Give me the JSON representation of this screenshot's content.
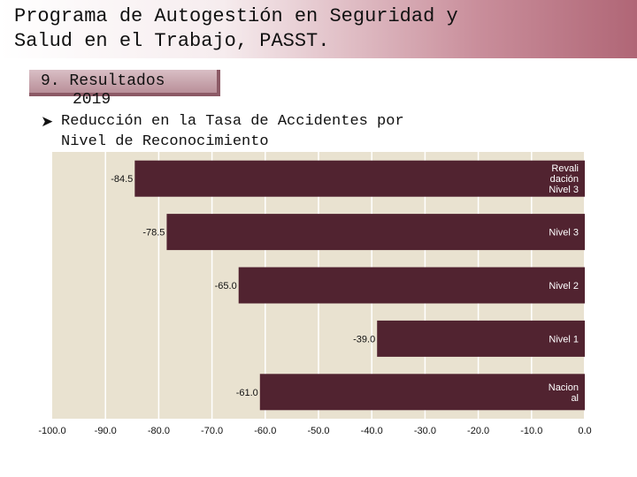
{
  "header": {
    "title_line1": "Programa de Autogestión en Seguridad y",
    "title_line2": "Salud en el Trabajo, PASST."
  },
  "section": {
    "number_label": "9. Resultados",
    "year": "2019",
    "bullet_icon": "arrow-bullet-icon",
    "subtitle_line1": "Reducción en la Tasa de Accidentes por",
    "subtitle_line2": "Nivel de Reconocimiento"
  },
  "colors": {
    "bar": "#512330",
    "plot_bg": "#e9e2d0",
    "header_accent": "#b06676"
  },
  "chart_data": {
    "type": "bar",
    "orientation": "horizontal",
    "categories": [
      [
        "Revali",
        "dación",
        "Nivel 3"
      ],
      [
        "Nivel 3"
      ],
      [
        "Nivel 2"
      ],
      [
        "Nivel 1"
      ],
      [
        "Nacion",
        "al"
      ]
    ],
    "values": [
      -84.5,
      -78.5,
      -65.0,
      -39.0,
      -61.0
    ],
    "value_labels": [
      "-84.5",
      "-78.5",
      "-65.0",
      "-39.0",
      "-61.0"
    ],
    "xlim": [
      -100,
      0
    ],
    "xticks": [
      "-100.0",
      "-90.0",
      "-80.0",
      "-70.0",
      "-60.0",
      "-50.0",
      "-40.0",
      "-30.0",
      "-20.0",
      "-10.0",
      "0.0"
    ],
    "grid": true,
    "title": "",
    "xlabel": "",
    "ylabel": ""
  }
}
